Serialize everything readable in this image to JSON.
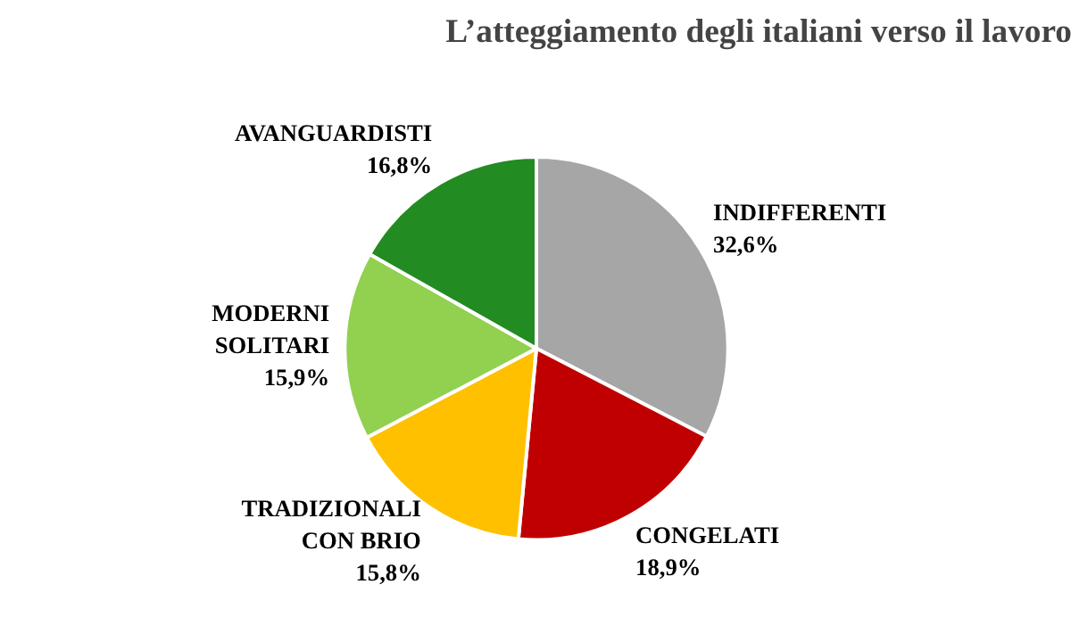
{
  "chart_data": {
    "type": "pie",
    "title": "L’atteggiamento degli italiani verso il lavoro",
    "categories": [
      "INDIFFERENTI",
      "CONGELATI",
      "TRADIZIONALI\nCON BRIO",
      "MODERNI\nSOLITARI",
      "AVANGUARDISTI"
    ],
    "values": [
      32.6,
      18.9,
      15.8,
      15.9,
      16.8
    ],
    "value_labels": [
      "32,6%",
      "18,9%",
      "15,8%",
      "15,9%",
      "16,8%"
    ],
    "colors": [
      "#a6a6a6",
      "#c00000",
      "#ffc000",
      "#92d050",
      "#228b22"
    ]
  }
}
